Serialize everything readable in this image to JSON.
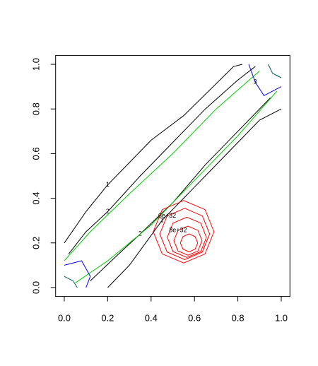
{
  "chart_data": {
    "type": "contour",
    "xlim": [
      -0.04,
      1.04
    ],
    "ylim": [
      -0.04,
      1.04
    ],
    "xticks": [
      {
        "value": 0,
        "label": "0.0"
      },
      0.2,
      0.4,
      0.6,
      0.8,
      {
        "value": 1,
        "label": "1.0"
      }
    ],
    "yticks": [
      {
        "value": 0,
        "label": "0.0"
      },
      0.2,
      0.4,
      0.6,
      0.8,
      {
        "value": 1,
        "label": "1.0"
      }
    ],
    "contours": [
      {
        "color": "#000000",
        "level": 1,
        "x": [
          0.0,
          0.1,
          0.2,
          0.4,
          0.55,
          0.78,
          0.82
        ],
        "y": [
          0.2,
          0.34,
          0.46,
          0.66,
          0.77,
          0.99,
          1.0
        ]
      },
      {
        "color": "#000000",
        "level": 1,
        "x": [
          0.2,
          0.3,
          0.45,
          0.6,
          0.75,
          0.9,
          1.0
        ],
        "y": [
          0.0,
          0.1,
          0.3,
          0.45,
          0.6,
          0.75,
          0.8
        ]
      },
      {
        "color": "#000000",
        "level": 2,
        "x": [
          0.02,
          0.1,
          0.2,
          0.35,
          0.5,
          0.65,
          0.8,
          0.88
        ],
        "y": [
          0.15,
          0.25,
          0.34,
          0.5,
          0.65,
          0.8,
          0.93,
          0.99
        ]
      },
      {
        "color": "#000000",
        "level": 2,
        "x": [
          0.12,
          0.25,
          0.35,
          0.5,
          0.65,
          0.8,
          0.95
        ],
        "y": [
          0.03,
          0.15,
          0.24,
          0.38,
          0.55,
          0.7,
          0.85
        ]
      },
      {
        "color": "#00cc00",
        "x": [
          0.0,
          0.12,
          0.3,
          0.5,
          0.7,
          0.9
        ],
        "y": [
          0.12,
          0.25,
          0.42,
          0.6,
          0.8,
          0.97
        ]
      },
      {
        "color": "#00cc00",
        "x": [
          0.05,
          0.2,
          0.4,
          0.6,
          0.8,
          0.98
        ],
        "y": [
          0.02,
          0.12,
          0.28,
          0.48,
          0.68,
          0.88
        ]
      },
      {
        "color": "#0000ff",
        "x": [
          0.0,
          0.08,
          0.12,
          0.1
        ],
        "y": [
          0.1,
          0.12,
          0.05,
          0.0
        ]
      },
      {
        "color": "#0000ff",
        "level": 3,
        "x": [
          0.85,
          0.88,
          0.92,
          1.0
        ],
        "y": [
          1.0,
          0.92,
          0.86,
          0.9
        ]
      },
      {
        "color": "#006060",
        "x": [
          0.0,
          0.04,
          0.06
        ],
        "y": [
          0.05,
          0.03,
          0.0
        ]
      },
      {
        "color": "#006060",
        "x": [
          0.94,
          0.96,
          1.0
        ],
        "y": [
          1.0,
          0.96,
          0.94
        ]
      },
      {
        "color": "#ff0000",
        "x": [
          0.69,
          0.649,
          0.55,
          0.451,
          0.41,
          0.451,
          0.55,
          0.649,
          0.69
        ],
        "y": [
          0.25,
          0.349,
          0.39,
          0.349,
          0.25,
          0.151,
          0.11,
          0.151,
          0.25
        ]
      },
      {
        "color": "#ff0000",
        "level": 6e+32,
        "x": [
          0.67,
          0.636,
          0.555,
          0.474,
          0.44,
          0.474,
          0.555,
          0.636,
          0.67
        ],
        "y": [
          0.24,
          0.321,
          0.355,
          0.321,
          0.24,
          0.159,
          0.125,
          0.159,
          0.24
        ]
      },
      {
        "color": "#ff0000",
        "x": [
          0.655,
          0.629,
          0.565,
          0.501,
          0.475,
          0.501,
          0.565,
          0.629,
          0.655
        ],
        "y": [
          0.225,
          0.289,
          0.315,
          0.289,
          0.225,
          0.161,
          0.135,
          0.161,
          0.225
        ]
      },
      {
        "color": "#ff0000",
        "level": 8e+32,
        "x": [
          0.635,
          0.616,
          0.57,
          0.524,
          0.505,
          0.524,
          0.57,
          0.616,
          0.635
        ],
        "y": [
          0.21,
          0.256,
          0.275,
          0.256,
          0.21,
          0.164,
          0.145,
          0.164,
          0.21
        ]
      },
      {
        "color": "#ff0000",
        "x": [
          0.615,
          0.603,
          0.575,
          0.547,
          0.535,
          0.547,
          0.575,
          0.603,
          0.615
        ],
        "y": [
          0.2,
          0.228,
          0.24,
          0.228,
          0.2,
          0.172,
          0.16,
          0.172,
          0.2
        ]
      }
    ]
  }
}
